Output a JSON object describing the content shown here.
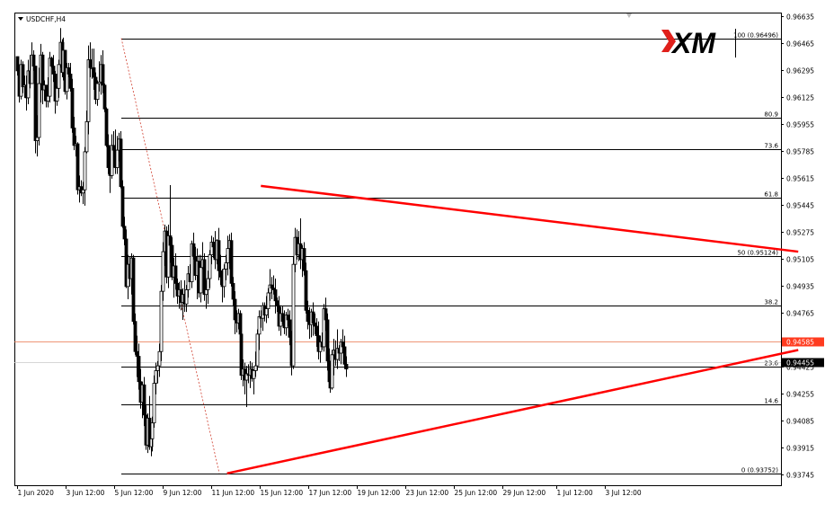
{
  "window": {
    "symbol_label": "USDCHF,H4",
    "logo_text": "XM",
    "colors": {
      "background": "#ffffff",
      "candle": "#000000",
      "fib_line": "#000000",
      "triangle_line": "#ff0000",
      "bid_line": "#e8734a",
      "bid_badge_bg": "#ff3b1f",
      "last_badge_bg": "#000000",
      "logo_accent": "#e0201b"
    }
  },
  "chart_data": {
    "type": "candlestick",
    "title": "USDCHF,H4",
    "ylim": [
      0.93745,
      0.96635
    ],
    "y_ticks": [
      "0.96635",
      "0.96465",
      "0.96295",
      "0.96125",
      "0.95955",
      "0.95785",
      "0.95615",
      "0.95445",
      "0.95275",
      "0.95105",
      "0.94935",
      "0.94765",
      "0.94425",
      "0.94255",
      "0.94085",
      "0.93915",
      "0.93745"
    ],
    "x_ticks": [
      "1 Jun 2020",
      "3 Jun 12:00",
      "5 Jun 12:00",
      "9 Jun 12:00",
      "11 Jun 12:00",
      "15 Jun 12:00",
      "17 Jun 12:00",
      "19 Jun 12:00",
      "23 Jun 12:00",
      "25 Jun 12:00",
      "29 Jun 12:00",
      "1 Jul 12:00",
      "3 Jul 12:00"
    ],
    "current_bid": "0.94585",
    "current_price": "0.94455",
    "fibonacci": {
      "levels": [
        {
          "label": "100 (0.96496)",
          "price": 0.96496
        },
        {
          "label": "80.9",
          "price": 0.95992
        },
        {
          "label": "73.6",
          "price": 0.95799
        },
        {
          "label": "61.8",
          "price": 0.95488
        },
        {
          "label": "50 (0.95124)",
          "price": 0.95124
        },
        {
          "label": "38.2",
          "price": 0.94813
        },
        {
          "label": "23.6",
          "price": 0.94427
        },
        {
          "label": "14.6",
          "price": 0.94189
        },
        {
          "label": "0 (0.93752)",
          "price": 0.93752
        }
      ]
    },
    "triangle": {
      "upper": [
        {
          "bar": 137,
          "price": 0.95565
        },
        {
          "bar": 439,
          "price": 0.9515
        }
      ],
      "lower": [
        {
          "bar": 118,
          "price": 0.93752
        },
        {
          "bar": 439,
          "price": 0.9453
        }
      ]
    },
    "candles": [
      [
        0.9638,
        0.9636,
        0.9626,
        0.9629
      ],
      [
        0.9629,
        0.9633,
        0.9609,
        0.9613
      ],
      [
        0.9613,
        0.9636,
        0.9611,
        0.9633
      ],
      [
        0.9633,
        0.9635,
        0.9615,
        0.9619
      ],
      [
        0.9619,
        0.9626,
        0.9612,
        0.962
      ],
      [
        0.962,
        0.9626,
        0.9604,
        0.9612
      ],
      [
        0.9612,
        0.9636,
        0.9608,
        0.9629
      ],
      [
        0.9629,
        0.9639,
        0.9618,
        0.9621
      ],
      [
        0.9621,
        0.9647,
        0.9621,
        0.9639
      ],
      [
        0.9639,
        0.9642,
        0.9629,
        0.9632
      ],
      [
        0.9632,
        0.9632,
        0.9577,
        0.9585
      ],
      [
        0.9585,
        0.9601,
        0.9575,
        0.9587
      ],
      [
        0.9587,
        0.9631,
        0.9582,
        0.9621
      ],
      [
        0.9621,
        0.9646,
        0.9609,
        0.9639
      ],
      [
        0.9639,
        0.9641,
        0.9608,
        0.9617
      ],
      [
        0.9617,
        0.9623,
        0.961,
        0.962
      ],
      [
        0.962,
        0.962,
        0.9606,
        0.961
      ],
      [
        0.961,
        0.9625,
        0.9606,
        0.9613
      ],
      [
        0.9613,
        0.9641,
        0.9609,
        0.9637
      ],
      [
        0.9637,
        0.9638,
        0.9631,
        0.9632
      ],
      [
        0.9632,
        0.9639,
        0.9622,
        0.9627
      ],
      [
        0.9627,
        0.9629,
        0.9602,
        0.961
      ],
      [
        0.961,
        0.9619,
        0.9607,
        0.9618
      ],
      [
        0.9618,
        0.9636,
        0.9612,
        0.9633
      ],
      [
        0.9633,
        0.9656,
        0.9631,
        0.9647
      ],
      [
        0.9647,
        0.9649,
        0.9625,
        0.9628
      ],
      [
        0.9628,
        0.965,
        0.9623,
        0.9642
      ],
      [
        0.9642,
        0.9642,
        0.9614,
        0.9616
      ],
      [
        0.9616,
        0.9634,
        0.9611,
        0.9631
      ],
      [
        0.9631,
        0.9634,
        0.9625,
        0.9627
      ],
      [
        0.9627,
        0.9634,
        0.9616,
        0.9618
      ],
      [
        0.9618,
        0.9624,
        0.959,
        0.9593
      ],
      [
        0.9593,
        0.96,
        0.9579,
        0.9582
      ],
      [
        0.9582,
        0.9588,
        0.9575,
        0.9583
      ],
      [
        0.9583,
        0.9584,
        0.9551,
        0.9554
      ],
      [
        0.9554,
        0.9563,
        0.9546,
        0.9556
      ],
      [
        0.9556,
        0.956,
        0.955,
        0.9552
      ],
      [
        0.9552,
        0.9559,
        0.9545,
        0.9554
      ],
      [
        0.9554,
        0.9581,
        0.9544,
        0.9578
      ],
      [
        0.9578,
        0.9604,
        0.9577,
        0.9597
      ],
      [
        0.9597,
        0.9645,
        0.9589,
        0.9636
      ],
      [
        0.9636,
        0.9647,
        0.9625,
        0.9631
      ],
      [
        0.9631,
        0.9643,
        0.9624,
        0.9631
      ],
      [
        0.9631,
        0.9643,
        0.9617,
        0.9625
      ],
      [
        0.9625,
        0.9628,
        0.9608,
        0.9611
      ],
      [
        0.9611,
        0.9623,
        0.9607,
        0.9621
      ],
      [
        0.9621,
        0.9635,
        0.9616,
        0.9622
      ],
      [
        0.9622,
        0.9639,
        0.9614,
        0.9633
      ],
      [
        0.9633,
        0.9642,
        0.9615,
        0.962
      ],
      [
        0.962,
        0.9621,
        0.9603,
        0.9605
      ],
      [
        0.9605,
        0.9606,
        0.9581,
        0.9582
      ],
      [
        0.9582,
        0.9589,
        0.9564,
        0.9568
      ],
      [
        0.9568,
        0.9581,
        0.9552,
        0.9563
      ],
      [
        0.9563,
        0.9589,
        0.9561,
        0.9582
      ],
      [
        0.9582,
        0.9591,
        0.9568,
        0.9579
      ],
      [
        0.9579,
        0.9592,
        0.9564,
        0.9568
      ],
      [
        0.9568,
        0.9588,
        0.9564,
        0.9579
      ],
      [
        0.9579,
        0.959,
        0.9572,
        0.9586
      ],
      [
        0.9586,
        0.9591,
        0.9555,
        0.9556
      ],
      [
        0.9556,
        0.956,
        0.953,
        0.9531
      ],
      [
        0.9531,
        0.9537,
        0.9519,
        0.9523
      ],
      [
        0.9523,
        0.9529,
        0.9492,
        0.9493
      ],
      [
        0.9493,
        0.9513,
        0.9485,
        0.9507
      ],
      [
        0.9507,
        0.9512,
        0.9493,
        0.9498
      ],
      [
        0.9498,
        0.9514,
        0.9488,
        0.9511
      ],
      [
        0.9511,
        0.9513,
        0.9469,
        0.9471
      ],
      [
        0.9471,
        0.9476,
        0.945,
        0.9452
      ],
      [
        0.9452,
        0.9462,
        0.9436,
        0.9449
      ],
      [
        0.9449,
        0.9457,
        0.9428,
        0.9433
      ],
      [
        0.9433,
        0.9441,
        0.9416,
        0.942
      ],
      [
        0.942,
        0.9433,
        0.941,
        0.9431
      ],
      [
        0.9431,
        0.9436,
        0.9405,
        0.9412
      ],
      [
        0.9412,
        0.9418,
        0.939,
        0.9393
      ],
      [
        0.9393,
        0.9413,
        0.9388,
        0.941
      ],
      [
        0.941,
        0.9424,
        0.939,
        0.9392
      ],
      [
        0.9392,
        0.94,
        0.9386,
        0.9397
      ],
      [
        0.9397,
        0.9411,
        0.9389,
        0.9407
      ],
      [
        0.9407,
        0.9437,
        0.9404,
        0.9432
      ],
      [
        0.9432,
        0.9445,
        0.9425,
        0.944
      ],
      [
        0.944,
        0.9446,
        0.9432,
        0.9443
      ],
      [
        0.9443,
        0.9457,
        0.9436,
        0.9452
      ],
      [
        0.9452,
        0.9494,
        0.9446,
        0.949
      ],
      [
        0.949,
        0.9521,
        0.9484,
        0.9515
      ],
      [
        0.9515,
        0.9532,
        0.9506,
        0.9528
      ],
      [
        0.9528,
        0.9531,
        0.9495,
        0.9499
      ],
      [
        0.9499,
        0.9532,
        0.9492,
        0.9525
      ],
      [
        0.9525,
        0.9557,
        0.9508,
        0.9519
      ],
      [
        0.9519,
        0.9524,
        0.9497,
        0.9499
      ],
      [
        0.9499,
        0.9511,
        0.9486,
        0.9506
      ],
      [
        0.9506,
        0.9514,
        0.9491,
        0.9495
      ],
      [
        0.9495,
        0.9498,
        0.9482,
        0.9487
      ],
      [
        0.9487,
        0.9496,
        0.9479,
        0.9491
      ],
      [
        0.9491,
        0.9497,
        0.9478,
        0.9483
      ],
      [
        0.9483,
        0.9492,
        0.9472,
        0.9488
      ],
      [
        0.9488,
        0.9497,
        0.9477,
        0.9482
      ],
      [
        0.9482,
        0.9494,
        0.9477,
        0.9491
      ],
      [
        0.9491,
        0.9506,
        0.9486,
        0.9501
      ],
      [
        0.9501,
        0.9507,
        0.9496,
        0.9496
      ],
      [
        0.9496,
        0.9522,
        0.9492,
        0.952
      ],
      [
        0.952,
        0.9527,
        0.951,
        0.9512
      ],
      [
        0.9512,
        0.9518,
        0.9497,
        0.95
      ],
      [
        0.95,
        0.9517,
        0.9485,
        0.9509
      ],
      [
        0.9509,
        0.9513,
        0.9486,
        0.9489
      ],
      [
        0.9489,
        0.9513,
        0.9483,
        0.9505
      ],
      [
        0.9505,
        0.9521,
        0.9504,
        0.951
      ],
      [
        0.951,
        0.9514,
        0.9484,
        0.9488
      ],
      [
        0.9488,
        0.9497,
        0.9479,
        0.9491
      ],
      [
        0.9491,
        0.9503,
        0.9482,
        0.9498
      ],
      [
        0.9498,
        0.9516,
        0.9492,
        0.9513
      ],
      [
        0.9513,
        0.9525,
        0.9507,
        0.9521
      ],
      [
        0.9521,
        0.9524,
        0.9511,
        0.9518
      ],
      [
        0.9518,
        0.9528,
        0.9504,
        0.951
      ],
      [
        0.951,
        0.9523,
        0.9507,
        0.9522
      ],
      [
        0.9522,
        0.953,
        0.9497,
        0.9503
      ],
      [
        0.9503,
        0.9513,
        0.9494,
        0.9499
      ],
      [
        0.9499,
        0.9504,
        0.9483,
        0.9493
      ],
      [
        0.9493,
        0.9507,
        0.9486,
        0.9504
      ],
      [
        0.9504,
        0.9513,
        0.9497,
        0.9508
      ],
      [
        0.9508,
        0.9525,
        0.95,
        0.9517
      ],
      [
        0.9517,
        0.9526,
        0.9504,
        0.9522
      ],
      [
        0.9522,
        0.9527,
        0.9493,
        0.9495
      ],
      [
        0.9495,
        0.9499,
        0.9481,
        0.9485
      ],
      [
        0.9485,
        0.949,
        0.9463,
        0.9472
      ],
      [
        0.9472,
        0.9478,
        0.9464,
        0.947
      ],
      [
        0.947,
        0.9479,
        0.9466,
        0.9476
      ],
      [
        0.9476,
        0.9478,
        0.946,
        0.9463
      ],
      [
        0.9463,
        0.9468,
        0.9434,
        0.9437
      ],
      [
        0.9437,
        0.9447,
        0.943,
        0.9441
      ],
      [
        0.9441,
        0.9445,
        0.9425,
        0.9434
      ],
      [
        0.9434,
        0.9443,
        0.9417,
        0.9438
      ],
      [
        0.9438,
        0.9444,
        0.9432,
        0.9437
      ],
      [
        0.9437,
        0.9446,
        0.9429,
        0.9441
      ],
      [
        0.9441,
        0.9445,
        0.9433,
        0.9435
      ],
      [
        0.9435,
        0.944,
        0.9425,
        0.944
      ],
      [
        0.944,
        0.9452,
        0.9436,
        0.9443
      ],
      [
        0.9443,
        0.9466,
        0.944,
        0.9463
      ],
      [
        0.9463,
        0.9478,
        0.9453,
        0.9474
      ],
      [
        0.9474,
        0.9478,
        0.9467,
        0.9473
      ],
      [
        0.9473,
        0.9483,
        0.9465,
        0.9481
      ],
      [
        0.9481,
        0.9483,
        0.9471,
        0.9475
      ],
      [
        0.9475,
        0.9487,
        0.947,
        0.9479
      ],
      [
        0.9479,
        0.9492,
        0.9473,
        0.9489
      ],
      [
        0.9489,
        0.9504,
        0.9484,
        0.9494
      ],
      [
        0.9494,
        0.9499,
        0.9485,
        0.9492
      ],
      [
        0.9492,
        0.95,
        0.9488,
        0.9491
      ],
      [
        0.9491,
        0.9498,
        0.9476,
        0.9484
      ],
      [
        0.9484,
        0.9486,
        0.9477,
        0.9481
      ],
      [
        0.9481,
        0.9487,
        0.9465,
        0.9468
      ],
      [
        0.9468,
        0.948,
        0.9462,
        0.9476
      ],
      [
        0.9476,
        0.9481,
        0.9469,
        0.9471
      ],
      [
        0.9471,
        0.9478,
        0.9463,
        0.9467
      ],
      [
        0.9467,
        0.9477,
        0.9462,
        0.9475
      ],
      [
        0.9475,
        0.9479,
        0.9468,
        0.9472
      ],
      [
        0.9472,
        0.9478,
        0.9456,
        0.9461
      ],
      [
        0.9461,
        0.9465,
        0.9437,
        0.9443
      ],
      [
        0.9443,
        0.9512,
        0.9441,
        0.9507
      ],
      [
        0.9507,
        0.953,
        0.9502,
        0.9524
      ],
      [
        0.9524,
        0.9529,
        0.951,
        0.9513
      ],
      [
        0.9513,
        0.9528,
        0.9509,
        0.952
      ],
      [
        0.952,
        0.9536,
        0.9504,
        0.951
      ],
      [
        0.951,
        0.9519,
        0.9499,
        0.9517
      ],
      [
        0.9517,
        0.9521,
        0.95,
        0.9503
      ],
      [
        0.9503,
        0.9508,
        0.9476,
        0.9478
      ],
      [
        0.9478,
        0.9484,
        0.9466,
        0.9471
      ],
      [
        0.9471,
        0.948,
        0.946,
        0.9469
      ],
      [
        0.9469,
        0.9479,
        0.9461,
        0.9477
      ],
      [
        0.9477,
        0.9483,
        0.9462,
        0.947
      ],
      [
        0.947,
        0.9476,
        0.9463,
        0.9468
      ],
      [
        0.9468,
        0.9473,
        0.9455,
        0.9462
      ],
      [
        0.9462,
        0.9471,
        0.9447,
        0.9452
      ],
      [
        0.9452,
        0.9462,
        0.9445,
        0.9458
      ],
      [
        0.9458,
        0.9464,
        0.9453,
        0.9455
      ],
      [
        0.9455,
        0.9482,
        0.9452,
        0.9479
      ],
      [
        0.9479,
        0.9486,
        0.9465,
        0.9472
      ],
      [
        0.9472,
        0.9476,
        0.944,
        0.9446
      ],
      [
        0.9446,
        0.9454,
        0.9431,
        0.9433
      ],
      [
        0.9433,
        0.9439,
        0.9426,
        0.9429
      ],
      [
        0.9429,
        0.9453,
        0.9428,
        0.945
      ],
      [
        0.945,
        0.946,
        0.9437,
        0.9453
      ],
      [
        0.9453,
        0.9459,
        0.9443,
        0.9447
      ],
      [
        0.9447,
        0.9466,
        0.9441,
        0.9454
      ],
      [
        0.9454,
        0.9456,
        0.9446,
        0.9451
      ],
      [
        0.9451,
        0.946,
        0.9444,
        0.9458
      ],
      [
        0.9458,
        0.9466,
        0.9451,
        0.9455
      ],
      [
        0.9455,
        0.9462,
        0.9441,
        0.9444
      ],
      [
        0.9444,
        0.9449,
        0.9436,
        0.9441
      ]
    ]
  }
}
